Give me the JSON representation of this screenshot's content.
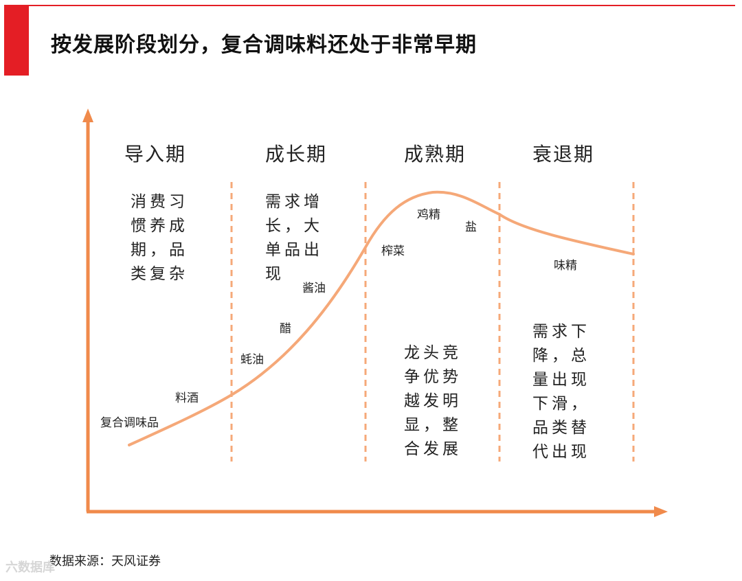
{
  "header": {
    "title": "按发展阶段划分，复合调味料还处于非常早期",
    "accent_color": "#e41e25"
  },
  "diagram": {
    "line_color": "#f5a878",
    "axis_color": "#f08a4b",
    "phases": [
      {
        "name": "导入期",
        "description": "消费习\n惯养成\n期，品\n类复杂"
      },
      {
        "name": "成长期",
        "description": "需求增\n长，大\n单品出\n现"
      },
      {
        "name": "成熟期",
        "description": "龙头竞\n争优势\n越发明\n显，整\n合发展"
      },
      {
        "name": "衰退期",
        "description": "需求下\n降，总\n量出现\n下滑，\n品类替\n代出现"
      }
    ],
    "products": [
      "复合调味品",
      "料酒",
      "蚝油",
      "醋",
      "酱油",
      "榨菜",
      "鸡精",
      "盐",
      "味精"
    ]
  },
  "footer": {
    "source": "数据来源：天风证券",
    "watermark": "六数据库"
  }
}
